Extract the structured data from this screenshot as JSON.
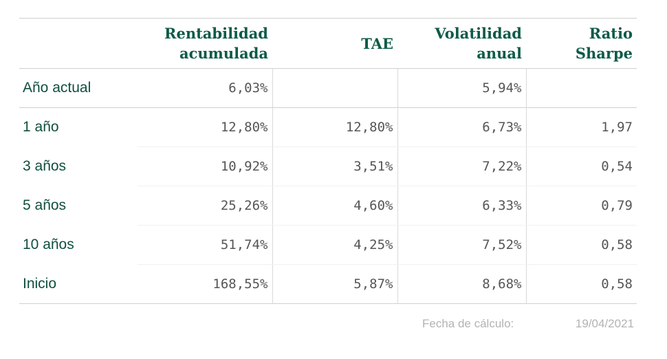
{
  "table": {
    "headers": [
      "",
      "Rentabilidad acumulada",
      "TAE",
      "Volatilidad anual",
      "Ratio Sharpe"
    ],
    "header_lines": [
      [],
      [
        "Rentabilidad",
        "acumulada"
      ],
      [
        "TAE"
      ],
      [
        "Volatilidad",
        "anual"
      ],
      [
        "Ratio",
        "Sharpe"
      ]
    ],
    "rows": [
      {
        "label": "Año actual",
        "rentabilidad": "6,03%",
        "tae": "",
        "volatilidad": "5,94%",
        "sharpe": ""
      },
      {
        "label": "1 año",
        "rentabilidad": "12,80%",
        "tae": "12,80%",
        "volatilidad": "6,73%",
        "sharpe": "1,97"
      },
      {
        "label": "3 años",
        "rentabilidad": "10,92%",
        "tae": "3,51%",
        "volatilidad": "7,22%",
        "sharpe": "0,54"
      },
      {
        "label": "5 años",
        "rentabilidad": "25,26%",
        "tae": "4,60%",
        "volatilidad": "6,33%",
        "sharpe": "0,79"
      },
      {
        "label": "10 años",
        "rentabilidad": "51,74%",
        "tae": "4,25%",
        "volatilidad": "7,52%",
        "sharpe": "0,58"
      },
      {
        "label": "Inicio",
        "rentabilidad": "168,55%",
        "tae": "5,87%",
        "volatilidad": "8,68%",
        "sharpe": "0,58"
      }
    ]
  },
  "footer": {
    "label": "Fecha de cálculo:",
    "date": "19/04/2021"
  },
  "colors": {
    "header_text": "#0e5a48",
    "label_text": "#0f4f3e",
    "number_text": "#555555",
    "footer_text": "#b3b3b3",
    "rule": "#cfcfcf"
  }
}
